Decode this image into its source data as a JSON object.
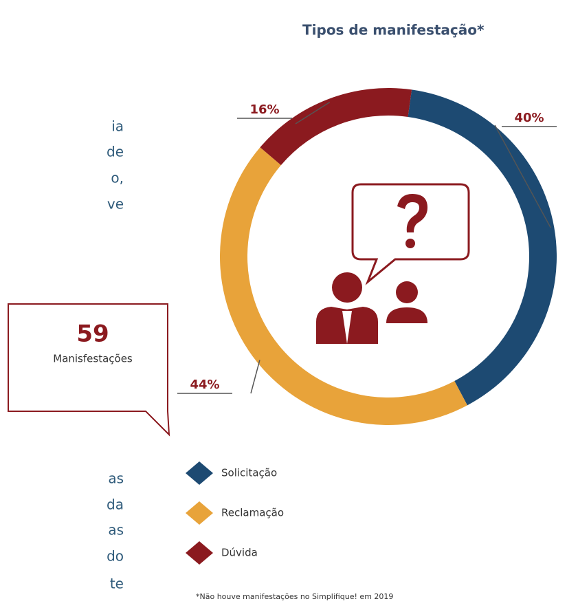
{
  "chart_data": {
    "type": "pie",
    "title": "Tipos de manifestação*",
    "categories": [
      "Solicitação",
      "Reclamação",
      "Dúvida"
    ],
    "values": [
      40,
      44,
      16
    ],
    "value_labels": [
      "40%",
      "44%",
      "16%"
    ],
    "colors": [
      "#1d4a72",
      "#e8a33a",
      "#8b1a1f"
    ],
    "footnote": "*Não houve manifestações no Simplifique! em 2019"
  },
  "callout": {
    "number": "59",
    "label": "Manisfestações"
  },
  "text_fragments": [
    "ia",
    "de",
    "o,",
    "ve",
    "as",
    "da",
    "as",
    "do",
    "te"
  ]
}
